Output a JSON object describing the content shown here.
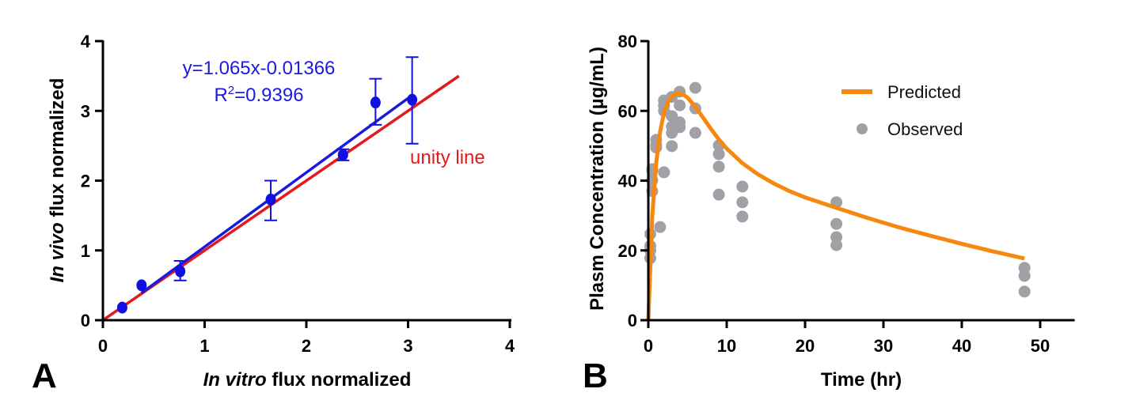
{
  "chart_data": [
    {
      "type": "scatter",
      "panel_label": "A",
      "title": "",
      "xlabel_italic": "In vitro",
      "xlabel_rest": " flux normalized",
      "ylabel_italic": "In vivo",
      "ylabel_rest": " flux normalized",
      "xlim": [
        0,
        4
      ],
      "ylim": [
        0,
        4
      ],
      "xticks": [
        "0",
        "1",
        "2",
        "3",
        "4"
      ],
      "yticks": [
        "0",
        "1",
        "2",
        "3",
        "4"
      ],
      "grid": false,
      "points": [
        {
          "x": 0.19,
          "y": 0.18,
          "err_low": null,
          "err_high": null
        },
        {
          "x": 0.38,
          "y": 0.5,
          "err_low": null,
          "err_high": null
        },
        {
          "x": 0.76,
          "y": 0.7,
          "err_low": 0.57,
          "err_high": 0.85
        },
        {
          "x": 1.65,
          "y": 1.73,
          "err_low": 1.43,
          "err_high": 2.0
        },
        {
          "x": 2.36,
          "y": 2.37,
          "err_low": 2.29,
          "err_high": 2.45
        },
        {
          "x": 2.68,
          "y": 3.12,
          "err_low": 2.8,
          "err_high": 3.46
        },
        {
          "x": 3.04,
          "y": 3.16,
          "err_low": 2.53,
          "err_high": 3.77
        }
      ],
      "fit_line": {
        "slope": 1.065,
        "intercept": -0.01366,
        "x_range": [
          0.38,
          3.04
        ],
        "color": "#1a1adf"
      },
      "unity_line": {
        "x_range": [
          0,
          3.5
        ],
        "color": "#e31a1c",
        "label": "unity line"
      },
      "equation_text": "y=1.065x-0.01366",
      "r2_prefix": "R",
      "r2_sup": "2",
      "r2_suffix": "=0.9396",
      "point_color": "#1010e0"
    },
    {
      "type": "scatter",
      "panel_label": "B",
      "title": "",
      "xlabel": "Time (hr)",
      "ylabel": "Plasm Concentration (µg/mL)",
      "xlim": [
        0,
        54.4
      ],
      "ylim": [
        0,
        80
      ],
      "xticks": [
        "0",
        "10",
        "20",
        "30",
        "40",
        "50"
      ],
      "yticks": [
        "0",
        "20",
        "40",
        "60",
        "80"
      ],
      "grid": false,
      "legend": {
        "position": "top-right",
        "entries": [
          {
            "label": "Predicted",
            "type": "line",
            "color": "#f7870f"
          },
          {
            "label": "Observed",
            "type": "marker",
            "color": "#a0a0a6"
          }
        ]
      },
      "predicted": {
        "name": "Predicted",
        "color": "#f7870f",
        "x": [
          0,
          0.5,
          1,
          1.5,
          2,
          2.5,
          3,
          3.5,
          4,
          4.5,
          5,
          6,
          7,
          8,
          9,
          10,
          12,
          14,
          16,
          18,
          20,
          24,
          28,
          32,
          36,
          40,
          44,
          48
        ],
        "y": [
          0,
          30,
          45,
          54,
          59.5,
          62.5,
          64.2,
          64.9,
          65,
          64.6,
          63.8,
          61.2,
          58,
          54.8,
          51.8,
          49.2,
          45,
          41.8,
          39.2,
          37,
          35.2,
          32.2,
          29.3,
          26.6,
          24.2,
          21.9,
          19.7,
          17.7
        ]
      },
      "observed": {
        "name": "Observed",
        "color": "#a0a0a6",
        "x": [
          0.25,
          0.25,
          0.25,
          0.25,
          0.5,
          0.5,
          0.5,
          0.5,
          1,
          1,
          1,
          1.5,
          2,
          2,
          2,
          2,
          3,
          3,
          3,
          3,
          3,
          4,
          4,
          4,
          4,
          6,
          6,
          6,
          9,
          9,
          9,
          9,
          12,
          12,
          12,
          24,
          24,
          24,
          24,
          48,
          48,
          48
        ],
        "y": [
          17.8,
          20.0,
          21.3,
          24.7,
          37.0,
          40.1,
          43.3,
          42.9,
          50.1,
          51.7,
          49.5,
          26.7,
          63.0,
          61.5,
          60.0,
          42.4,
          64.0,
          58.5,
          55.5,
          53.7,
          49.9,
          65.5,
          61.6,
          56.7,
          55.3,
          66.6,
          60.7,
          53.7,
          50.1,
          47.6,
          44.0,
          36.0,
          38.3,
          33.8,
          29.7,
          33.8,
          27.6,
          23.8,
          21.5,
          15.0,
          12.7,
          8.2
        ]
      }
    }
  ]
}
